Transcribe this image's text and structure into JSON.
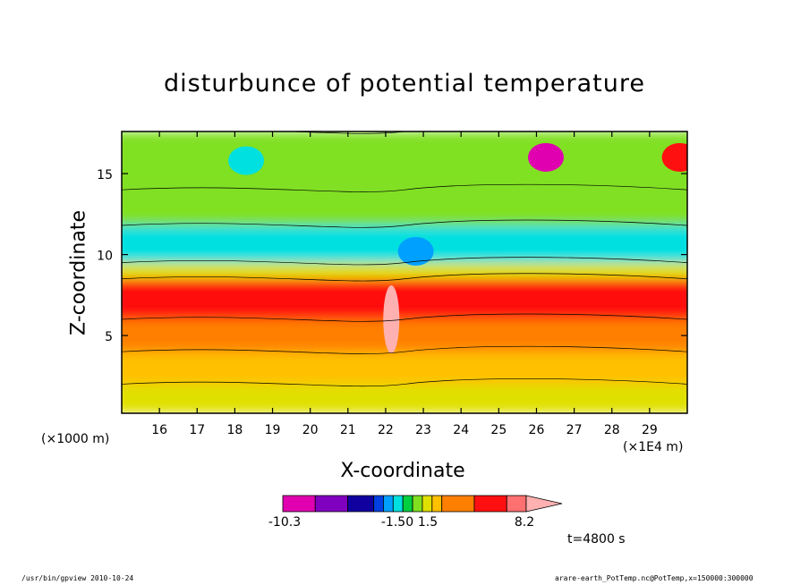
{
  "chart_data": {
    "type": "heatmap",
    "title": "disturbunce of potential temperature",
    "xlabel": "X-coordinate",
    "ylabel": "Z-coordinate",
    "x_unit": "(×1E4 m)",
    "y_unit": "(×1000 m)",
    "xlim": [
      15.0,
      30.0
    ],
    "ylim": [
      0.2,
      17.6
    ],
    "x_ticks": [
      16,
      17,
      18,
      19,
      20,
      21,
      22,
      23,
      24,
      25,
      26,
      27,
      28,
      29
    ],
    "y_ticks": [
      5,
      10,
      15
    ],
    "colorbar": {
      "tick_labels": [
        "-10.3",
        "-1.50",
        "1.5",
        "8.2"
      ],
      "colors": [
        "#e000b0",
        "#8000c0",
        "#1000a0",
        "#0040e0",
        "#00a0ff",
        "#00e0e0",
        "#00d040",
        "#80e020",
        "#e0e000",
        "#ffc000",
        "#ff8000",
        "#ff1010",
        "#ff7070",
        "#ffb0b0"
      ]
    },
    "bands": [
      {
        "z": [
          0.2,
          2.0
        ],
        "value": 1.2
      },
      {
        "z": [
          2.0,
          4.0
        ],
        "value": 2.0
      },
      {
        "z": [
          4.0,
          6.0
        ],
        "value": 3.0
      },
      {
        "z": [
          6.0,
          8.5
        ],
        "value": 4.5
      },
      {
        "z": [
          8.5,
          9.5
        ],
        "value": 1.0
      },
      {
        "z": [
          9.5,
          11.8
        ],
        "value": -2.5
      },
      {
        "z": [
          11.8,
          14.0
        ],
        "value": -1.0
      },
      {
        "z": [
          14.0,
          17.6
        ],
        "value": 0.2
      }
    ],
    "features": [
      {
        "x": 22.15,
        "z": 6.0,
        "value": 8.2
      },
      {
        "x": 22.8,
        "z": 10.2,
        "value": -4.0
      },
      {
        "x": 26.25,
        "z": 16.0,
        "value": -10.3
      },
      {
        "x": 29.8,
        "z": 16.0,
        "value": 5.0
      },
      {
        "x": 18.3,
        "z": 15.8,
        "value": -3.5
      }
    ],
    "annotation": "t=4800 s"
  },
  "footer": {
    "left": "/usr/bin/gpview  2010-10-24",
    "right": "arare-earth_PotTemp.nc@PotTemp,x=150000:300000"
  }
}
